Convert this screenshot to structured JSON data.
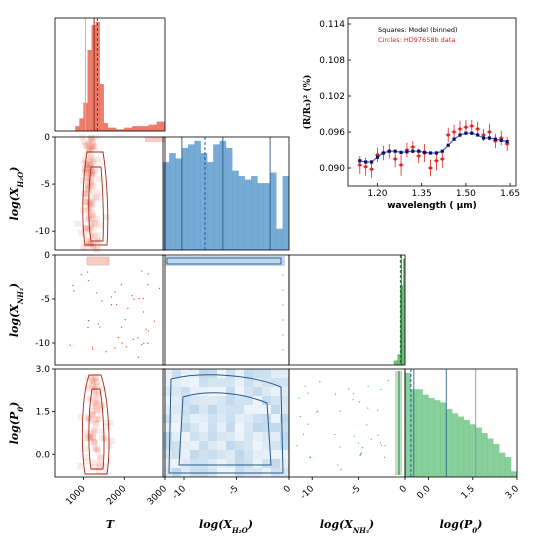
{
  "chart_data": [
    {
      "type": "corner",
      "parameters": [
        "T",
        "log(X_H2O)",
        "log(X_NH3)",
        "log(P0)"
      ],
      "axis_labels": {
        "T": {
          "base": "T",
          "sub": ""
        },
        "H2O": {
          "base": "log(X",
          "sub": "H₂O",
          "close": ")"
        },
        "NH3": {
          "base": "log(X",
          "sub": "NH₃",
          "close": ")"
        },
        "P0": {
          "base": "log(P",
          "sub": "0",
          "close": ")"
        }
      },
      "ranges": {
        "T": [
          300,
          3000
        ],
        "log_X_H2O": [
          -12,
          0
        ],
        "log_X_NH3": [
          -12.5,
          0
        ],
        "log_P0": [
          -0.8,
          3.0
        ]
      },
      "ticks": {
        "T": [
          "1000",
          "2000",
          "3000"
        ],
        "log_X_H2O": [
          "-10",
          "-5",
          "0"
        ],
        "log_X_NH3": [
          "-10",
          "-5",
          "0"
        ],
        "log_P0": [
          "0.0",
          "1.5",
          "3.0"
        ]
      },
      "colors": {
        "T": "#e8543a",
        "H2O": "#4a90c8",
        "NH3": "#3faa4c",
        "P0": "#5fbf7a"
      },
      "hist_T": {
        "bins": [
          300,
          400,
          500,
          600,
          700,
          800,
          900,
          1000,
          1100,
          1200,
          1300,
          1400,
          1500,
          1600,
          1700,
          1800,
          2000,
          2200,
          2400,
          2600,
          2800,
          3000
        ],
        "counts": [
          0,
          0,
          0,
          0,
          0,
          3,
          8,
          18,
          52,
          68,
          70,
          30,
          5,
          2,
          2,
          1,
          2,
          3,
          3,
          4,
          6
        ]
      },
      "hist_T_lines": {
        "median": 1260,
        "lower": 1050,
        "upper": 1340
      },
      "hist_H2O": {
        "bins": [
          -12,
          -11.4,
          -10.8,
          -10.2,
          -9.6,
          -9,
          -8.4,
          -7.8,
          -7.2,
          -6.6,
          -6,
          -5.4,
          -4.8,
          -4.2,
          -3.6,
          -3,
          -2.4,
          -1.8,
          -1.2,
          -0.6,
          0
        ],
        "counts": [
          50,
          55,
          52,
          58,
          60,
          62,
          55,
          50,
          60,
          62,
          58,
          45,
          42,
          40,
          42,
          38,
          38,
          44,
          12,
          42
        ]
      },
      "hist_H2O_lines": {
        "median": -6.3,
        "lower": -10.2,
        "upper": -1.8,
        "best": -8.0
      },
      "hist_NH3": {
        "bins": [
          -12.5,
          -1.2,
          -0.8,
          -0.5,
          -0.2,
          0
        ],
        "counts": [
          0,
          5,
          12,
          90,
          120
        ]
      },
      "hist_NH3_lines": {
        "median": -0.4,
        "best": -0.5
      },
      "hist_P0": {
        "bins": [
          -0.8,
          -0.6,
          -0.4,
          -0.2,
          0,
          0.2,
          0.4,
          0.6,
          0.8,
          1.0,
          1.2,
          1.4,
          1.6,
          1.8,
          2.0,
          2.2,
          2.4,
          2.6,
          2.8,
          3.0
        ],
        "counts": [
          95,
          80,
          80,
          75,
          72,
          70,
          68,
          62,
          58,
          55,
          52,
          48,
          45,
          40,
          35,
          30,
          22,
          18,
          5
        ],
        "lines": {
          "median": 0.6,
          "lower": -0.5,
          "upper": 1.6,
          "best": -0.6
        }
      }
    },
    {
      "type": "scatter",
      "title": "",
      "xlabel": "wavelength ( μm)",
      "ylabel": "(R/R₃)² (%)",
      "xlim": [
        1.1,
        1.67
      ],
      "ylim": [
        0.087,
        0.115
      ],
      "xticks": [
        1.2,
        1.35,
        1.5,
        1.65
      ],
      "xtick_labels": [
        "1.20",
        "1.35",
        "1.50",
        "1.65"
      ],
      "yticks": [
        0.09,
        0.096,
        0.102,
        0.108,
        0.114
      ],
      "ytick_labels": [
        "0.090",
        "0.096",
        "0.102",
        "0.108",
        "0.114"
      ],
      "legend": {
        "placement": "top",
        "entries": [
          {
            "label": "Squares: Model (binned)",
            "color": "#000000"
          },
          {
            "label": "Circles: HD97658b data",
            "color": "#e02020"
          }
        ]
      },
      "data_x": [
        1.14,
        1.16,
        1.18,
        1.2,
        1.22,
        1.24,
        1.26,
        1.28,
        1.3,
        1.32,
        1.34,
        1.36,
        1.38,
        1.4,
        1.42,
        1.44,
        1.46,
        1.48,
        1.5,
        1.52,
        1.54,
        1.56,
        1.58,
        1.6,
        1.62,
        1.64
      ],
      "data_y": [
        0.0905,
        0.0902,
        0.0898,
        0.0922,
        0.0925,
        0.0928,
        0.0915,
        0.0905,
        0.093,
        0.0935,
        0.092,
        0.0925,
        0.09,
        0.0912,
        0.0915,
        0.0955,
        0.096,
        0.0965,
        0.0968,
        0.097,
        0.0965,
        0.0955,
        0.096,
        0.0945,
        0.095,
        0.094
      ],
      "data_err": [
        0.0015,
        0.0015,
        0.0015,
        0.0012,
        0.0012,
        0.0012,
        0.0014,
        0.0018,
        0.0012,
        0.001,
        0.0012,
        0.0015,
        0.0014,
        0.0016,
        0.0015,
        0.0012,
        0.0012,
        0.0014,
        0.0012,
        0.001,
        0.0012,
        0.001,
        0.0014,
        0.0012,
        0.0012,
        0.0012
      ],
      "model_y": [
        0.0912,
        0.091,
        0.091,
        0.0918,
        0.0925,
        0.0928,
        0.0928,
        0.0926,
        0.0927,
        0.0928,
        0.0928,
        0.0926,
        0.0925,
        0.0925,
        0.0928,
        0.0938,
        0.0948,
        0.0955,
        0.0958,
        0.0958,
        0.0955,
        0.095,
        0.095,
        0.0948,
        0.0946,
        0.0944
      ]
    }
  ]
}
